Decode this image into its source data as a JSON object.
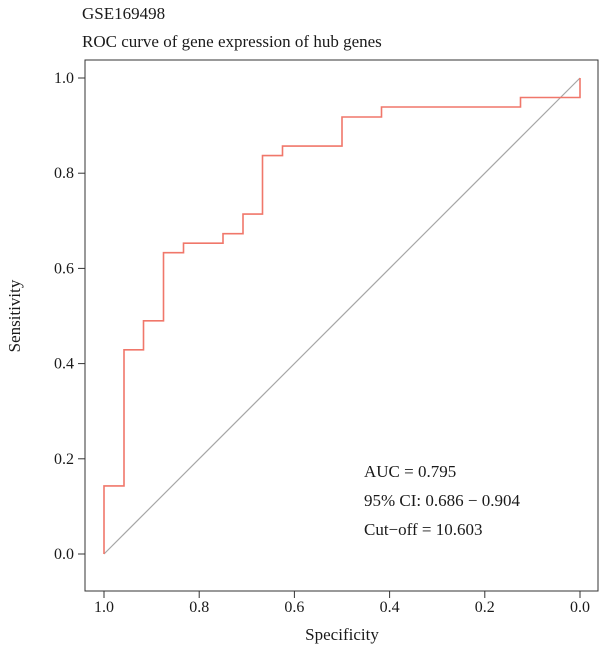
{
  "chart_data": {
    "type": "line",
    "title": "GSE169498",
    "subtitle": "ROC curve of gene expression of hub genes",
    "xlabel": "Specificity",
    "ylabel": "Sensitivity",
    "x_reversed": true,
    "xlim": [
      1.0,
      0.0
    ],
    "ylim": [
      0.0,
      1.0
    ],
    "x_ticks": [
      "1.0",
      "0.8",
      "0.6",
      "0.4",
      "0.2",
      "0.0"
    ],
    "y_ticks": [
      "0.0",
      "0.2",
      "0.4",
      "0.6",
      "0.8",
      "1.0"
    ],
    "grid": false,
    "colors": {
      "roc": "#f0776a",
      "diagonal": "#a6a6a6",
      "axis": "#333333"
    },
    "series": [
      {
        "specificity": [
          1.0,
          1.0,
          0.958,
          0.958,
          0.917,
          0.917,
          0.875,
          0.875,
          0.833,
          0.833,
          0.75,
          0.75,
          0.708,
          0.708,
          0.667,
          0.667,
          0.625,
          0.625,
          0.5,
          0.5,
          0.417,
          0.417,
          0.125,
          0.125,
          0.0,
          0.0
        ],
        "sensitivity": [
          0.0,
          0.143,
          0.143,
          0.429,
          0.429,
          0.49,
          0.49,
          0.633,
          0.633,
          0.653,
          0.653,
          0.673,
          0.673,
          0.714,
          0.714,
          0.837,
          0.837,
          0.857,
          0.857,
          0.918,
          0.918,
          0.939,
          0.939,
          0.959,
          0.959,
          1.0
        ]
      }
    ],
    "reference_line": {
      "from": [
        1.0,
        0.0
      ],
      "to": [
        0.0,
        1.0
      ]
    },
    "annotations": [
      "AUC = 0.795",
      "95% CI: 0.686 − 0.904",
      "Cut−off = 10.603"
    ]
  }
}
